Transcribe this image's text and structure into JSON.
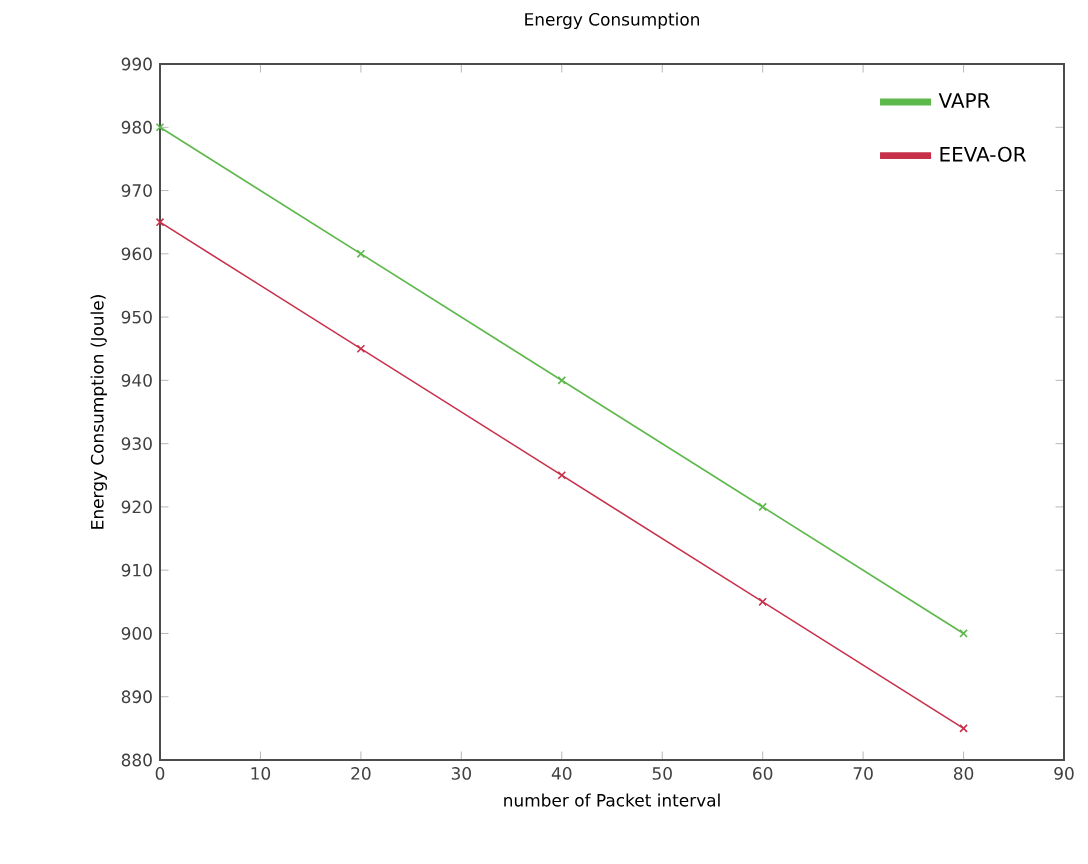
{
  "chart_data": {
    "type": "line",
    "title": "Energy Consumption",
    "xlabel": "number of Packet interval",
    "ylabel": "Energy Consumption    (Joule)",
    "x": [
      0,
      20,
      40,
      60,
      80
    ],
    "series": [
      {
        "name": "VAPR",
        "color": "#5cb84a",
        "values": [
          980,
          960,
          940,
          920,
          900
        ]
      },
      {
        "name": "EEVA-OR",
        "color": "#c8304a",
        "values": [
          965,
          945,
          925,
          905,
          885
        ]
      }
    ],
    "xlim": [
      0,
      90
    ],
    "xticks": [
      0,
      10,
      20,
      30,
      40,
      50,
      60,
      70,
      80,
      90
    ],
    "ylim": [
      880,
      990
    ],
    "yticks": [
      880,
      890,
      900,
      910,
      920,
      930,
      940,
      950,
      960,
      970,
      980,
      990
    ],
    "grid": false,
    "legend": "top right",
    "marker": "cross",
    "line_style": "solid"
  }
}
